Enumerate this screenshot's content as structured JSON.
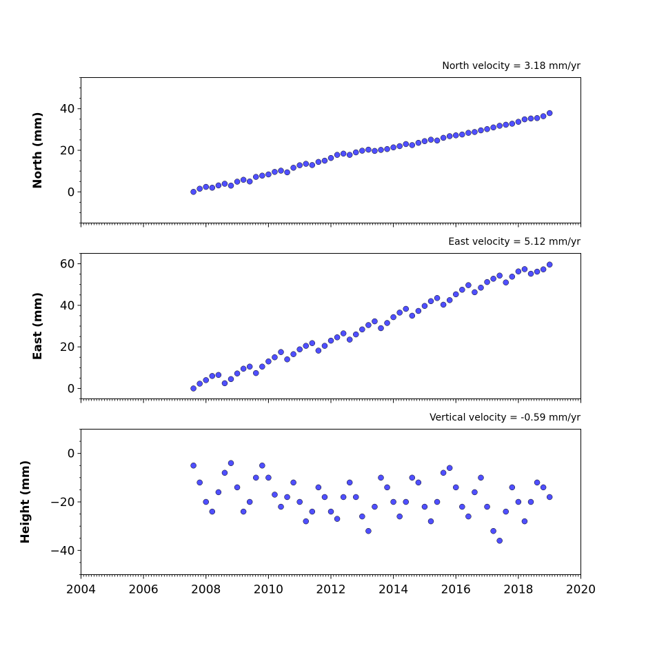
{
  "chart_data": [
    {
      "type": "scatter",
      "title": "North velocity = 3.18 mm/yr",
      "ylabel": "North (mm)",
      "xlim": [
        2004,
        2020
      ],
      "ylim": [
        -15,
        55
      ],
      "yticks": [
        0,
        20,
        40
      ],
      "xticks": [
        2004,
        2006,
        2008,
        2010,
        2012,
        2014,
        2016,
        2018,
        2020
      ],
      "show_xtick_labels": false,
      "marker_color": "#4f4fff",
      "edge_color": "#000000",
      "series": [
        {
          "x": [
            2007.6,
            2007.8,
            2008.0,
            2008.2,
            2008.4,
            2008.6,
            2008.8,
            2009.0,
            2009.2,
            2009.4,
            2009.6,
            2009.8,
            2010.0,
            2010.2,
            2010.4,
            2010.6,
            2010.8,
            2011.0,
            2011.2,
            2011.4,
            2011.6,
            2011.8,
            2012.0,
            2012.2,
            2012.4,
            2012.6,
            2012.8,
            2013.0,
            2013.2,
            2013.4,
            2013.6,
            2013.8,
            2014.0,
            2014.2,
            2014.4,
            2014.6,
            2014.8,
            2015.0,
            2015.2,
            2015.4,
            2015.6,
            2015.8,
            2016.0,
            2016.2,
            2016.4,
            2016.6,
            2016.8,
            2017.0,
            2017.2,
            2017.4,
            2017.6,
            2017.8,
            2018.0,
            2018.2,
            2018.4,
            2018.6,
            2018.8,
            2019.0
          ],
          "y": [
            0.0,
            1.5,
            2.4,
            2.0,
            3.1,
            3.9,
            3.0,
            4.9,
            5.8,
            5.0,
            7.2,
            7.8,
            8.4,
            9.6,
            10.2,
            9.4,
            11.6,
            12.8,
            13.5,
            12.9,
            14.4,
            15.0,
            16.3,
            17.8,
            18.4,
            17.8,
            19.0,
            19.8,
            20.3,
            19.7,
            20.2,
            20.6,
            21.4,
            22.0,
            23.0,
            22.5,
            23.6,
            24.4,
            25.1,
            24.7,
            26.0,
            26.8,
            27.2,
            27.6,
            28.4,
            28.8,
            29.6,
            30.2,
            31.0,
            31.8,
            32.3,
            32.8,
            33.7,
            34.9,
            35.3,
            35.5,
            36.4,
            37.9
          ]
        }
      ]
    },
    {
      "type": "scatter",
      "title": "East velocity = 5.12 mm/yr",
      "ylabel": "East (mm)",
      "xlim": [
        2004,
        2020
      ],
      "ylim": [
        -5,
        65
      ],
      "yticks": [
        0,
        20,
        40,
        60
      ],
      "xticks": [
        2004,
        2006,
        2008,
        2010,
        2012,
        2014,
        2016,
        2018,
        2020
      ],
      "show_xtick_labels": false,
      "marker_color": "#4f4fff",
      "edge_color": "#000000",
      "series": [
        {
          "x": [
            2007.6,
            2007.8,
            2008.0,
            2008.2,
            2008.4,
            2008.6,
            2008.8,
            2009.0,
            2009.2,
            2009.4,
            2009.6,
            2009.8,
            2010.0,
            2010.2,
            2010.4,
            2010.6,
            2010.8,
            2011.0,
            2011.2,
            2011.4,
            2011.6,
            2011.8,
            2012.0,
            2012.2,
            2012.4,
            2012.6,
            2012.8,
            2013.0,
            2013.2,
            2013.4,
            2013.6,
            2013.8,
            2014.0,
            2014.2,
            2014.4,
            2014.6,
            2014.8,
            2015.0,
            2015.2,
            2015.4,
            2015.6,
            2015.8,
            2016.0,
            2016.2,
            2016.4,
            2016.6,
            2016.8,
            2017.0,
            2017.2,
            2017.4,
            2017.6,
            2017.8,
            2018.0,
            2018.2,
            2018.4,
            2018.6,
            2018.8,
            2019.0
          ],
          "y": [
            0.0,
            2.3,
            4.0,
            6.0,
            6.5,
            2.5,
            4.5,
            7.2,
            9.5,
            10.5,
            7.4,
            10.5,
            13.0,
            15.0,
            17.5,
            14.0,
            16.5,
            18.8,
            20.5,
            21.8,
            18.2,
            20.5,
            23.0,
            24.6,
            26.5,
            23.5,
            26.0,
            28.4,
            30.5,
            32.3,
            29.0,
            31.5,
            34.3,
            36.5,
            38.3,
            35.0,
            37.3,
            39.7,
            42.0,
            43.5,
            40.3,
            42.5,
            45.3,
            47.5,
            49.7,
            46.3,
            48.5,
            51.2,
            52.8,
            54.3,
            51.0,
            53.8,
            56.3,
            57.4,
            55.2,
            56.2,
            57.3,
            59.6
          ]
        }
      ]
    },
    {
      "type": "scatter",
      "title": "Vertical velocity = -0.59 mm/yr",
      "ylabel": "Height (mm)",
      "xlim": [
        2004,
        2020
      ],
      "ylim": [
        -50,
        10
      ],
      "yticks": [
        -40,
        -20,
        0
      ],
      "xticks": [
        2004,
        2006,
        2008,
        2010,
        2012,
        2014,
        2016,
        2018,
        2020
      ],
      "show_xtick_labels": true,
      "xtick_labels": [
        "2004",
        "2006",
        "2008",
        "2010",
        "2012",
        "2014",
        "2016",
        "2018",
        "2020"
      ],
      "marker_color": "#4f4fff",
      "edge_color": "#000000",
      "series": [
        {
          "x": [
            2007.6,
            2007.8,
            2008.0,
            2008.2,
            2008.4,
            2008.6,
            2008.8,
            2009.0,
            2009.2,
            2009.4,
            2009.6,
            2009.8,
            2010.0,
            2010.2,
            2010.4,
            2010.6,
            2010.8,
            2011.0,
            2011.2,
            2011.4,
            2011.6,
            2011.8,
            2012.0,
            2012.2,
            2012.4,
            2012.6,
            2012.8,
            2013.0,
            2013.2,
            2013.4,
            2013.6,
            2013.8,
            2014.0,
            2014.2,
            2014.4,
            2014.6,
            2014.8,
            2015.0,
            2015.2,
            2015.4,
            2015.6,
            2015.8,
            2016.0,
            2016.2,
            2016.4,
            2016.6,
            2016.8,
            2017.0,
            2017.2,
            2017.4,
            2017.6,
            2017.8,
            2018.0,
            2018.2,
            2018.4,
            2018.6,
            2018.8,
            2019.0
          ],
          "y": [
            -5,
            -12,
            -20,
            -24,
            -16,
            -8,
            -4,
            -14,
            -24,
            -20,
            -10,
            -5,
            -10,
            -17,
            -22,
            -18,
            -12,
            -20,
            -28,
            -24,
            -14,
            -18,
            -24,
            -27,
            -18,
            -12,
            -18,
            -26,
            -32,
            -22,
            -10,
            -14,
            -20,
            -26,
            -20,
            -10,
            -12,
            -22,
            -28,
            -20,
            -8,
            -6,
            -14,
            -22,
            -26,
            -16,
            -10,
            -22,
            -32,
            -36,
            -24,
            -14,
            -20,
            -28,
            -20,
            -12,
            -14,
            -18
          ]
        }
      ]
    }
  ]
}
